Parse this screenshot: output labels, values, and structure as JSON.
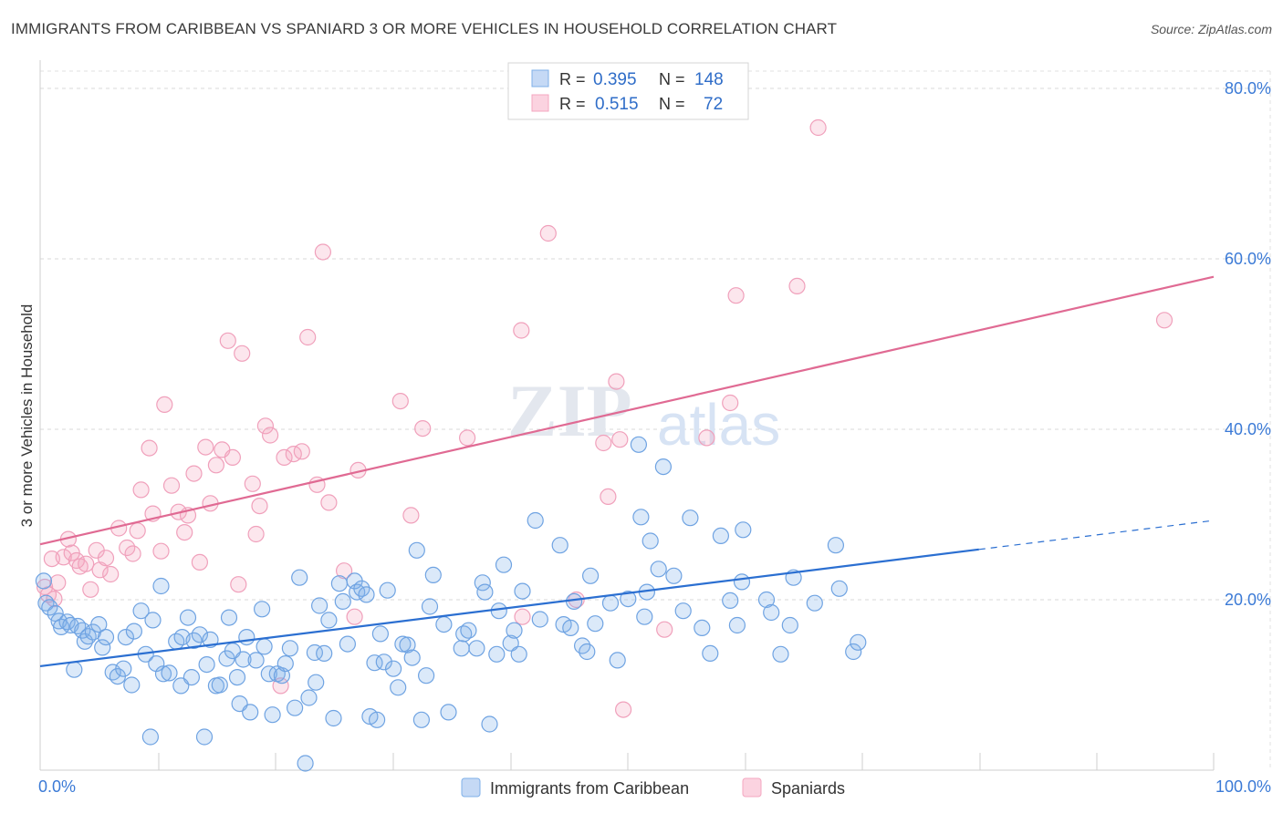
{
  "title": "IMMIGRANTS FROM CARIBBEAN VS SPANIARD 3 OR MORE VEHICLES IN HOUSEHOLD CORRELATION CHART",
  "source": "Source: ZipAtlas.com",
  "watermark": {
    "zip": "ZIP",
    "atlas": "atlas"
  },
  "legend_box": {
    "rows": [
      {
        "r_label": "R =",
        "r_value": "0.395",
        "n_label": "N =",
        "n_value": "148"
      },
      {
        "r_label": "R =",
        "r_value": "0.515",
        "n_label": "N =",
        "n_value": "72"
      }
    ]
  },
  "chart_data": {
    "type": "scatter",
    "title": "IMMIGRANTS FROM CARIBBEAN VS SPANIARD 3 OR MORE VEHICLES IN HOUSEHOLD CORRELATION CHART",
    "xlabel": "",
    "ylabel": "3 or more Vehicles in Household",
    "xlim": [
      0,
      100
    ],
    "ylim": [
      0,
      80
    ],
    "x_tick_labels": [
      "0.0%",
      "100.0%"
    ],
    "y_ticks": [
      20,
      40,
      60,
      80
    ],
    "y_tick_labels": [
      "20.0%",
      "40.0%",
      "60.0%",
      "80.0%"
    ],
    "grid": true,
    "legend_position": "bottom-center",
    "series": [
      {
        "name": "Immigrants from Caribbean",
        "color": "#7fb0e8",
        "line_color": "#2b6fd1",
        "trend": {
          "x0": 0,
          "y0": 12.2,
          "x1": 80,
          "y1": 25.9,
          "dash_to": 100,
          "dash_y": 29.3
        },
        "points": [
          [
            0.3,
            22.2
          ],
          [
            0.5,
            19.6
          ],
          [
            0.8,
            19.1
          ],
          [
            1.3,
            18.4
          ],
          [
            1.6,
            17.5
          ],
          [
            1.8,
            16.8
          ],
          [
            2.3,
            17.4
          ],
          [
            2.6,
            17.0
          ],
          [
            2.9,
            11.8
          ],
          [
            3.2,
            16.9
          ],
          [
            3.6,
            16.4
          ],
          [
            3.8,
            15.1
          ],
          [
            4.1,
            15.7
          ],
          [
            4.5,
            16.2
          ],
          [
            5.0,
            17.1
          ],
          [
            5.3,
            14.4
          ],
          [
            5.6,
            15.6
          ],
          [
            6.2,
            11.5
          ],
          [
            6.6,
            11.0
          ],
          [
            7.1,
            11.9
          ],
          [
            7.3,
            15.6
          ],
          [
            7.8,
            10.0
          ],
          [
            8.0,
            16.3
          ],
          [
            8.6,
            18.7
          ],
          [
            9.0,
            13.6
          ],
          [
            9.4,
            3.9
          ],
          [
            9.6,
            17.6
          ],
          [
            9.9,
            12.5
          ],
          [
            10.3,
            21.6
          ],
          [
            10.5,
            11.3
          ],
          [
            11.0,
            11.4
          ],
          [
            11.6,
            15.1
          ],
          [
            12.0,
            9.9
          ],
          [
            12.1,
            15.6
          ],
          [
            12.6,
            17.9
          ],
          [
            12.9,
            10.9
          ],
          [
            13.1,
            15.2
          ],
          [
            13.6,
            15.9
          ],
          [
            14.0,
            3.9
          ],
          [
            14.2,
            12.4
          ],
          [
            14.5,
            15.3
          ],
          [
            15.0,
            9.9
          ],
          [
            15.3,
            10.0
          ],
          [
            15.9,
            13.1
          ],
          [
            16.1,
            17.9
          ],
          [
            16.4,
            14.0
          ],
          [
            16.8,
            10.9
          ],
          [
            17.0,
            7.8
          ],
          [
            17.3,
            13.0
          ],
          [
            17.6,
            15.6
          ],
          [
            17.9,
            6.8
          ],
          [
            18.4,
            12.9
          ],
          [
            18.9,
            18.9
          ],
          [
            19.1,
            14.5
          ],
          [
            19.5,
            11.3
          ],
          [
            19.8,
            6.5
          ],
          [
            20.2,
            11.3
          ],
          [
            20.6,
            11.1
          ],
          [
            20.9,
            12.5
          ],
          [
            21.3,
            14.3
          ],
          [
            21.7,
            7.3
          ],
          [
            22.1,
            22.6
          ],
          [
            22.6,
            0.8
          ],
          [
            22.9,
            8.5
          ],
          [
            23.4,
            13.8
          ],
          [
            23.5,
            10.3
          ],
          [
            23.8,
            19.3
          ],
          [
            24.2,
            13.7
          ],
          [
            24.6,
            17.6
          ],
          [
            25.0,
            6.1
          ],
          [
            25.5,
            21.9
          ],
          [
            25.8,
            19.8
          ],
          [
            26.2,
            14.8
          ],
          [
            26.8,
            22.2
          ],
          [
            27.0,
            20.9
          ],
          [
            27.4,
            21.3
          ],
          [
            27.8,
            20.6
          ],
          [
            28.1,
            6.3
          ],
          [
            28.5,
            12.6
          ],
          [
            28.7,
            5.9
          ],
          [
            29.0,
            16.0
          ],
          [
            29.3,
            12.7
          ],
          [
            29.6,
            21.1
          ],
          [
            30.1,
            11.9
          ],
          [
            30.5,
            9.7
          ],
          [
            30.9,
            14.8
          ],
          [
            31.3,
            14.7
          ],
          [
            31.7,
            13.2
          ],
          [
            32.1,
            25.8
          ],
          [
            32.5,
            5.9
          ],
          [
            32.9,
            11.1
          ],
          [
            33.2,
            19.2
          ],
          [
            33.5,
            22.9
          ],
          [
            34.4,
            17.1
          ],
          [
            34.8,
            6.8
          ],
          [
            35.9,
            14.3
          ],
          [
            36.1,
            16.0
          ],
          [
            36.5,
            16.4
          ],
          [
            37.2,
            14.3
          ],
          [
            37.7,
            22.0
          ],
          [
            37.9,
            20.9
          ],
          [
            38.3,
            5.4
          ],
          [
            38.9,
            13.6
          ],
          [
            39.1,
            18.7
          ],
          [
            39.5,
            24.1
          ],
          [
            40.1,
            14.9
          ],
          [
            40.4,
            16.4
          ],
          [
            40.8,
            13.6
          ],
          [
            41.1,
            21.0
          ],
          [
            42.2,
            29.3
          ],
          [
            42.6,
            17.7
          ],
          [
            44.3,
            26.4
          ],
          [
            44.6,
            17.1
          ],
          [
            45.2,
            16.7
          ],
          [
            45.5,
            19.8
          ],
          [
            46.2,
            14.6
          ],
          [
            46.6,
            13.9
          ],
          [
            46.9,
            22.8
          ],
          [
            47.3,
            17.2
          ],
          [
            48.6,
            19.6
          ],
          [
            49.2,
            12.9
          ],
          [
            50.1,
            20.1
          ],
          [
            51.0,
            38.2
          ],
          [
            51.2,
            29.7
          ],
          [
            51.5,
            18.0
          ],
          [
            51.7,
            20.9
          ],
          [
            52.0,
            26.9
          ],
          [
            52.7,
            23.6
          ],
          [
            53.1,
            35.6
          ],
          [
            54.0,
            22.8
          ],
          [
            54.8,
            18.7
          ],
          [
            55.4,
            29.6
          ],
          [
            56.4,
            16.7
          ],
          [
            57.1,
            13.7
          ],
          [
            58.0,
            27.5
          ],
          [
            58.8,
            19.9
          ],
          [
            59.4,
            17.0
          ],
          [
            59.8,
            22.1
          ],
          [
            59.9,
            28.2
          ],
          [
            61.9,
            20.0
          ],
          [
            62.3,
            18.5
          ],
          [
            63.1,
            13.6
          ],
          [
            63.9,
            17.0
          ],
          [
            64.2,
            22.6
          ],
          [
            66.0,
            19.6
          ],
          [
            67.8,
            26.4
          ],
          [
            68.1,
            21.3
          ],
          [
            69.3,
            13.9
          ],
          [
            69.7,
            15.0
          ]
        ]
      },
      {
        "name": "Spaniards",
        "color": "#f4a7c0",
        "line_color": "#e06a93",
        "trend": {
          "x0": 0,
          "y0": 26.5,
          "x1": 100,
          "y1": 57.9
        },
        "points": [
          [
            0.4,
            21.5
          ],
          [
            0.7,
            20.6
          ],
          [
            1.0,
            24.8
          ],
          [
            1.2,
            20.1
          ],
          [
            1.5,
            22.0
          ],
          [
            2.0,
            25.0
          ],
          [
            2.4,
            27.1
          ],
          [
            2.7,
            25.5
          ],
          [
            3.1,
            24.6
          ],
          [
            3.4,
            23.9
          ],
          [
            3.9,
            24.2
          ],
          [
            4.3,
            21.2
          ],
          [
            4.8,
            25.8
          ],
          [
            5.1,
            23.5
          ],
          [
            5.6,
            24.9
          ],
          [
            6.0,
            23.0
          ],
          [
            6.7,
            28.4
          ],
          [
            7.4,
            26.1
          ],
          [
            7.9,
            25.4
          ],
          [
            8.3,
            28.1
          ],
          [
            8.6,
            32.9
          ],
          [
            9.3,
            37.8
          ],
          [
            9.6,
            30.1
          ],
          [
            10.3,
            25.7
          ],
          [
            10.6,
            42.9
          ],
          [
            11.2,
            33.4
          ],
          [
            11.8,
            30.3
          ],
          [
            12.3,
            27.9
          ],
          [
            12.6,
            29.9
          ],
          [
            13.1,
            34.8
          ],
          [
            13.6,
            24.4
          ],
          [
            14.1,
            37.9
          ],
          [
            14.5,
            31.3
          ],
          [
            15.0,
            35.8
          ],
          [
            15.5,
            37.6
          ],
          [
            16.0,
            50.4
          ],
          [
            16.4,
            36.7
          ],
          [
            16.9,
            21.8
          ],
          [
            17.2,
            48.9
          ],
          [
            18.1,
            33.6
          ],
          [
            18.4,
            27.7
          ],
          [
            18.7,
            31.0
          ],
          [
            19.2,
            40.4
          ],
          [
            19.6,
            39.3
          ],
          [
            20.5,
            9.9
          ],
          [
            20.8,
            36.7
          ],
          [
            21.6,
            37.1
          ],
          [
            22.3,
            37.4
          ],
          [
            22.8,
            50.8
          ],
          [
            23.6,
            33.5
          ],
          [
            24.1,
            60.8
          ],
          [
            24.6,
            31.4
          ],
          [
            25.9,
            23.4
          ],
          [
            26.8,
            18.0
          ],
          [
            27.1,
            35.2
          ],
          [
            30.7,
            43.3
          ],
          [
            31.6,
            29.9
          ],
          [
            32.6,
            40.1
          ],
          [
            36.4,
            39.0
          ],
          [
            41.0,
            51.6
          ],
          [
            41.1,
            18.0
          ],
          [
            43.3,
            63.0
          ],
          [
            45.7,
            20.0
          ],
          [
            48.0,
            38.4
          ],
          [
            48.4,
            32.1
          ],
          [
            49.1,
            45.6
          ],
          [
            49.4,
            38.8
          ],
          [
            49.7,
            7.1
          ],
          [
            53.2,
            16.5
          ],
          [
            56.8,
            39.0
          ],
          [
            58.8,
            43.1
          ],
          [
            59.3,
            55.7
          ],
          [
            64.5,
            56.8
          ],
          [
            66.3,
            75.4
          ],
          [
            95.8,
            52.8
          ]
        ]
      }
    ]
  },
  "legend": [
    {
      "label": "Immigrants from Caribbean"
    },
    {
      "label": "Spaniards"
    }
  ]
}
